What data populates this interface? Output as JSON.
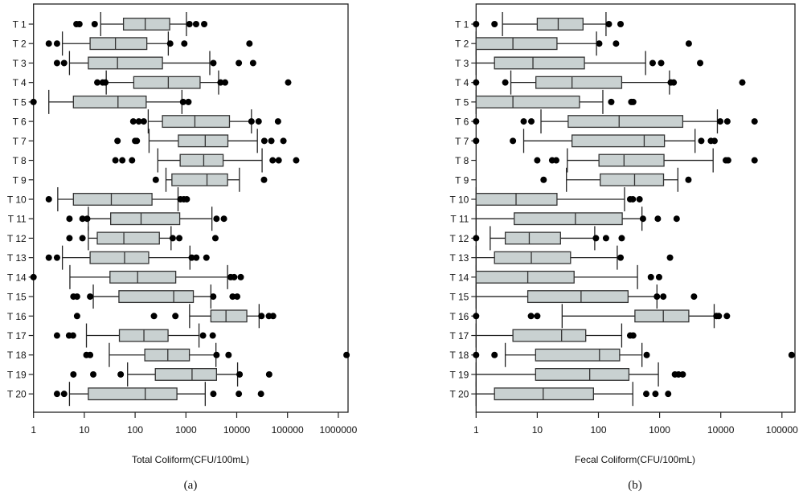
{
  "chart_data": [
    {
      "type": "boxplot",
      "orientation": "horizontal",
      "caption": "(a)",
      "xlabel": "Total Coliform(CFU/100mL)",
      "xscale": "log",
      "xlim": [
        1,
        1600000
      ],
      "xticks": [
        "1",
        "10",
        "100",
        "1000",
        "10000",
        "100000",
        "1000000"
      ],
      "categories": [
        "T 1",
        "T 2",
        "T 3",
        "T 4",
        "T 5",
        "T 6",
        "T 7",
        "T 8",
        "T 9",
        "T 10",
        "T 11",
        "T 12",
        "T 13",
        "T 14",
        "T 15",
        "T 16",
        "T 17",
        "T 18",
        "T 19",
        "T 20"
      ],
      "box_color": "#c9d1d1",
      "series": [
        {
          "stats": [
            21,
            59,
            158,
            479,
            1023
          ],
          "outliers": [
            7,
            8,
            16,
            1175,
            1585,
            2290
          ]
        },
        {
          "stats": [
            3.7,
            13,
            41,
            170,
            450
          ],
          "outliers": [
            2,
            2.9,
            490,
            930,
            17800
          ]
        },
        {
          "stats": [
            5.1,
            12,
            45,
            345,
            2950
          ],
          "outliers": [
            2.9,
            4,
            3470,
            11000,
            21000
          ]
        },
        {
          "stats": [
            27,
            94,
            450,
            1900,
            4400
          ],
          "outliers": [
            18,
            23,
            26,
            4800,
            5900,
            103000
          ]
        },
        {
          "stats": [
            2,
            6.1,
            46,
            165,
            835
          ],
          "outliers": [
            1,
            880,
            1120
          ]
        },
        {
          "stats": [
            181,
            345,
            1500,
            7200,
            19500
          ],
          "outliers": [
            92,
            118,
            148,
            19500,
            27000,
            65000
          ]
        },
        {
          "stats": [
            188,
            710,
            2400,
            6700,
            25500
          ],
          "outliers": [
            45,
            100,
            108,
            35000,
            48000,
            83000
          ]
        },
        {
          "stats": [
            280,
            770,
            2240,
            5400,
            31600
          ],
          "outliers": [
            41,
            56,
            87,
            51000,
            67000,
            148000
          ]
        },
        {
          "stats": [
            405,
            530,
            2600,
            6600,
            11300
          ],
          "outliers": [
            255,
            34500
          ]
        },
        {
          "stats": [
            3,
            6.1,
            34,
            215,
            700
          ],
          "outliers": [
            2,
            780,
            910,
            1040
          ]
        },
        {
          "stats": [
            12,
            33,
            131,
            755,
            3250
          ],
          "outliers": [
            5.1,
            9.2,
            11.4,
            4000,
            5600
          ]
        },
        {
          "stats": [
            12,
            18,
            60,
            300,
            510
          ],
          "outliers": [
            5.1,
            9.2,
            550,
            740,
            3800
          ]
        },
        {
          "stats": [
            3.7,
            13,
            62,
            185,
            1200
          ],
          "outliers": [
            2,
            2.9,
            1300,
            1600,
            2530
          ]
        },
        {
          "stats": [
            5.2,
            32,
            112,
            630,
            6600
          ],
          "outliers": [
            1,
            7600,
            8900,
            12000
          ]
        },
        {
          "stats": [
            15,
            48,
            575,
            1400,
            3100
          ],
          "outliers": [
            6.1,
            7.2,
            13,
            3450,
            8300,
            10200
          ]
        },
        {
          "stats": [
            1180,
            3100,
            6150,
            15800,
            27600
          ],
          "outliers": [
            7.2,
            235,
            620,
            30700,
            43000,
            52000
          ]
        },
        {
          "stats": [
            11,
            49,
            149,
            445,
            1810
          ],
          "outliers": [
            2.9,
            5,
            6,
            2170,
            3370
          ]
        },
        {
          "stats": [
            31,
            155,
            440,
            1170,
            3900
          ],
          "outliers": [
            11,
            13,
            4000,
            6900,
            1450000
          ]
        },
        {
          "stats": [
            71,
            250,
            1320,
            4000,
            10400
          ],
          "outliers": [
            6.1,
            15,
            52,
            11400,
            43500
          ]
        },
        {
          "stats": [
            5.1,
            12,
            158,
            665,
            2400
          ],
          "outliers": [
            2.9,
            4,
            3470,
            11000,
            30000
          ]
        }
      ]
    },
    {
      "type": "boxplot",
      "orientation": "horizontal",
      "caption": "(b)",
      "xlabel": "Fecal Coliform(CFU/100mL)",
      "xscale": "log",
      "xlim": [
        1,
        160000
      ],
      "xticks": [
        "1",
        "10",
        "100",
        "1000",
        "10000",
        "100000"
      ],
      "categories": [
        "T 1",
        "T 2",
        "T 3",
        "T 4",
        "T 5",
        "T 6",
        "T 7",
        "T 8",
        "T 9",
        "T 10",
        "T 11",
        "T 12",
        "T 13",
        "T 14",
        "T 15",
        "T 16",
        "T 17",
        "T 18",
        "T 19",
        "T 20"
      ],
      "box_color": "#c9d1d1",
      "series": [
        {
          "stats": [
            2.7,
            10,
            22,
            56,
            133
          ],
          "outliers": [
            1,
            2,
            148,
            230
          ]
        },
        {
          "stats": [
            1,
            1,
            4,
            21,
            93
          ],
          "outliers": [
            103,
            194,
            3000
          ]
        },
        {
          "stats": [
            1,
            2,
            8.5,
            59,
            590
          ],
          "outliers": [
            770,
            1060,
            4600
          ]
        },
        {
          "stats": [
            3.7,
            9.5,
            37,
            240,
            1450
          ],
          "outliers": [
            1,
            3,
            1520,
            1700,
            22500
          ]
        },
        {
          "stats": [
            1,
            1,
            4,
            49,
            118
          ],
          "outliers": [
            162,
            345,
            370
          ]
        },
        {
          "stats": [
            11.5,
            32,
            218,
            2390,
            8800
          ],
          "outliers": [
            1,
            6,
            8,
            9800,
            12800,
            35700
          ]
        },
        {
          "stats": [
            6,
            37,
            560,
            1200,
            3800
          ],
          "outliers": [
            1,
            4,
            4800,
            6900,
            7900
          ]
        },
        {
          "stats": [
            31,
            102,
            262,
            1180,
            7500
          ],
          "outliers": [
            10,
            17.5,
            20.4,
            12100,
            13200,
            35700
          ]
        },
        {
          "stats": [
            30,
            107,
            390,
            1160,
            1990
          ],
          "outliers": [
            12.7,
            2960
          ]
        },
        {
          "stats": [
            1,
            1,
            4.5,
            21,
            267
          ],
          "outliers": [
            330,
            365,
            470
          ]
        },
        {
          "stats": [
            1,
            4.2,
            42,
            245,
            515
          ],
          "outliers": [
            535,
            935,
            1900
          ]
        },
        {
          "stats": [
            1.7,
            3,
            7.4,
            24,
            87
          ],
          "outliers": [
            1,
            91,
            133,
            240
          ]
        },
        {
          "stats": [
            1,
            2,
            8,
            35,
            203
          ],
          "outliers": [
            230,
            1480
          ]
        },
        {
          "stats": [
            1,
            1,
            7,
            40,
            435
          ],
          "outliers": [
            720,
            980
          ]
        },
        {
          "stats": [
            1,
            7,
            52,
            305,
            905
          ],
          "outliers": [
            905,
            1150,
            3650
          ]
        },
        {
          "stats": [
            25.5,
            395,
            1150,
            3000,
            7800
          ],
          "outliers": [
            1,
            7.9,
            10,
            8500,
            9300,
            12600
          ]
        },
        {
          "stats": [
            1,
            4,
            25,
            62,
            240
          ],
          "outliers": [
            330,
            370
          ]
        },
        {
          "stats": [
            3,
            9.4,
            104,
            222,
            515
          ],
          "outliers": [
            1,
            2,
            615,
            144000
          ]
        },
        {
          "stats": [
            1,
            9.4,
            72,
            315,
            955
          ],
          "outliers": [
            1780,
            2040,
            2390
          ]
        },
        {
          "stats": [
            1,
            2,
            12.5,
            83,
            365
          ],
          "outliers": [
            605,
            855,
            1380
          ]
        }
      ]
    }
  ]
}
